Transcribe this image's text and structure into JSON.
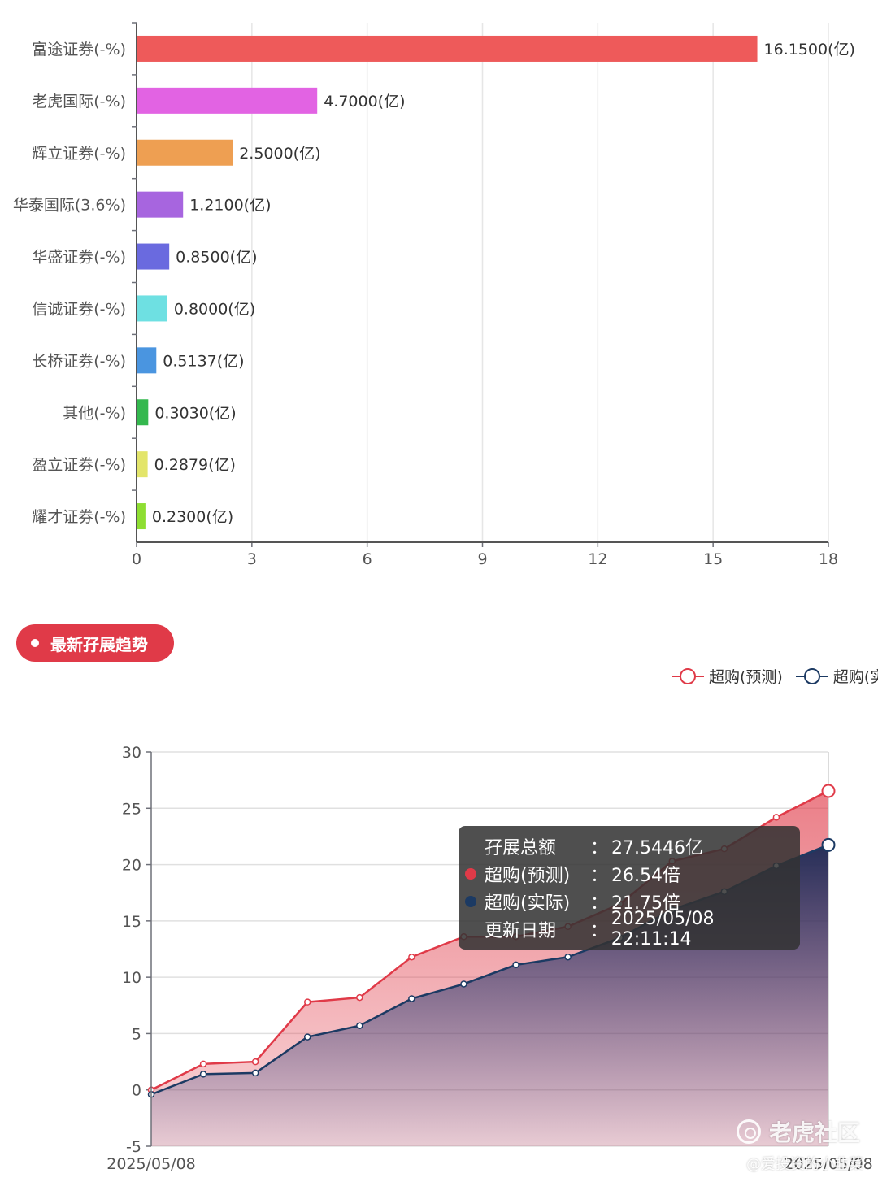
{
  "chart_data": [
    {
      "type": "bar",
      "orientation": "horizontal",
      "categories": [
        "富途证券(-%)",
        "老虎国际(-%)",
        "辉立证券(-%)",
        "华泰国际(3.6%)",
        "华盛证券(-%)",
        "信诚证券(-%)",
        "长桥证券(-%)",
        "其他(-%)",
        "盈立证券(-%)",
        "耀才证券(-%)"
      ],
      "values": [
        16.15,
        4.7,
        2.5,
        1.21,
        0.85,
        0.8,
        0.5137,
        0.303,
        0.2879,
        0.23
      ],
      "value_labels": [
        "16.1500(亿)",
        "4.7000(亿)",
        "2.5000(亿)",
        "1.2100(亿)",
        "0.8500(亿)",
        "0.8000(亿)",
        "0.5137(亿)",
        "0.3030(亿)",
        "0.2879(亿)",
        "0.2300(亿)"
      ],
      "colors": [
        "#ee5a5a",
        "#e263e3",
        "#ee9f52",
        "#a765df",
        "#6a6adf",
        "#6ee0e2",
        "#4a95e0",
        "#34b84e",
        "#e3e56b",
        "#8ede32"
      ],
      "xlim": [
        0,
        18
      ],
      "xticks": [
        "0",
        "3",
        "6",
        "9",
        "12",
        "15",
        "18"
      ],
      "grid": true
    },
    {
      "type": "area",
      "series": [
        {
          "name": "超购(预测)",
          "color": "#e03a48",
          "values": [
            0.0,
            2.3,
            2.5,
            7.8,
            8.2,
            11.8,
            13.6,
            13.6,
            14.5,
            16.5,
            20.3,
            21.4,
            24.2,
            26.54
          ]
        },
        {
          "name": "超购(实际)",
          "color": "#1c3a63",
          "values": [
            -0.4,
            1.4,
            1.5,
            4.7,
            5.7,
            8.1,
            9.4,
            11.1,
            11.8,
            13.5,
            16.0,
            17.6,
            19.9,
            21.75
          ]
        }
      ],
      "ylim": [
        -5,
        30
      ],
      "yticks": [
        "-5",
        "0",
        "5",
        "10",
        "15",
        "20",
        "25",
        "30"
      ],
      "x_start_label": "2025/05/08",
      "x_end_label": "2025/05/08",
      "grid": true,
      "legend_position": "top-right"
    }
  ],
  "section": {
    "title": "最新孖展趋势"
  },
  "tooltip": {
    "rows": [
      {
        "label": "孖展总额",
        "sep": "：",
        "value": "27.5446亿",
        "dot": ""
      },
      {
        "label": "超购(预测)",
        "sep": "：",
        "value": "26.54倍",
        "dot": "#e03a48"
      },
      {
        "label": "超购(实际)",
        "sep": "：",
        "value": "21.75倍",
        "dot": "#1c3a63"
      },
      {
        "label": "更新日期",
        "sep": "：",
        "value": "2025/05/08 22:11:14",
        "dot": ""
      }
    ]
  },
  "watermark": {
    "brand": "老虎社区",
    "credit": "@爱投资的小韭菜"
  }
}
